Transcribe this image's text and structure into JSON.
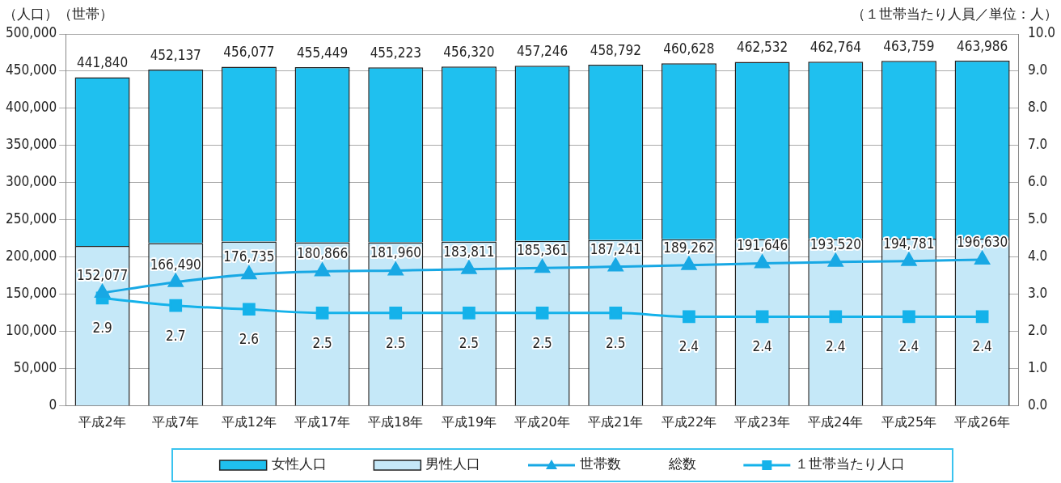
{
  "chart_data": {
    "type": "bar",
    "stacked": true,
    "ylabel": "（人口）（世帯）",
    "y2label": "（１世帯当たり人員／単位：人）",
    "categories": [
      "平成2年",
      "平成7年",
      "平成12年",
      "平成17年",
      "平成18年",
      "平成19年",
      "平成20年",
      "平成21年",
      "平成22年",
      "平成23年",
      "平成24年",
      "平成25年",
      "平成26年"
    ],
    "series": [
      {
        "name": "男性人口",
        "color": "#c5e8f8",
        "values": [
          215000,
          219000,
          221000,
          220000,
          220000,
          221000,
          222000,
          223000,
          224000,
          224000,
          224000,
          225000,
          225000
        ]
      },
      {
        "name": "女性人口",
        "color": "#1fc0ef",
        "values": [
          226840,
          233137,
          235077,
          235449,
          235223,
          235320,
          235246,
          235792,
          236628,
          238532,
          238764,
          238759,
          238986
        ]
      },
      {
        "name": "世帯数",
        "type": "line",
        "color": "#18a8e4",
        "marker": "triangle",
        "values": [
          152077,
          166490,
          176735,
          180866,
          181960,
          183811,
          185361,
          187241,
          189262,
          191646,
          193520,
          194781,
          196630
        ],
        "value_labels": [
          "152,077",
          "166,490",
          "176,735",
          "180,866",
          "181,960",
          "183,811",
          "185,361",
          "187,241",
          "189,262",
          "191,646",
          "193,520",
          "194,781",
          "196,630"
        ]
      },
      {
        "name": "１世帯当たり人口",
        "type": "line",
        "axis": "y2",
        "color": "#14b2ea",
        "marker": "square",
        "values": [
          2.9,
          2.7,
          2.6,
          2.5,
          2.5,
          2.5,
          2.5,
          2.5,
          2.4,
          2.4,
          2.4,
          2.4,
          2.4
        ],
        "value_labels": [
          "2.9",
          "2.7",
          "2.6",
          "2.5",
          "2.5",
          "2.5",
          "2.5",
          "2.5",
          "2.4",
          "2.4",
          "2.4",
          "2.4",
          "2.4"
        ]
      }
    ],
    "totals": [
      "441,840",
      "452,137",
      "456,077",
      "455,449",
      "455,223",
      "456,320",
      "457,246",
      "458,792",
      "460,628",
      "462,532",
      "462,764",
      "463,759",
      "463,986"
    ],
    "annotations": [
      "総数"
    ],
    "ylim": [
      0,
      500000
    ],
    "yticks": [
      {
        "value": 0,
        "label": "0"
      },
      {
        "value": 50000,
        "label": "50,000"
      },
      {
        "value": 100000,
        "label": "100,000"
      },
      {
        "value": 150000,
        "label": "150,000"
      },
      {
        "value": 200000,
        "label": "200,000"
      },
      {
        "value": 250000,
        "label": "250,000"
      },
      {
        "value": 300000,
        "label": "300,000"
      },
      {
        "value": 350000,
        "label": "350,000"
      },
      {
        "value": 400000,
        "label": "400,000"
      },
      {
        "value": 450000,
        "label": "450,000"
      },
      {
        "value": 500000,
        "label": "500,000"
      }
    ],
    "y2lim": [
      0,
      10
    ],
    "y2ticks": [
      {
        "value": 0,
        "label": "0.0"
      },
      {
        "value": 1,
        "label": "1.0"
      },
      {
        "value": 2,
        "label": "2.0"
      },
      {
        "value": 3,
        "label": "3.0"
      },
      {
        "value": 4,
        "label": "4.0"
      },
      {
        "value": 5,
        "label": "5.0"
      },
      {
        "value": 6,
        "label": "6.0"
      },
      {
        "value": 7,
        "label": "7.0"
      },
      {
        "value": 8,
        "label": "8.0"
      },
      {
        "value": 9,
        "label": "9.0"
      },
      {
        "value": 10,
        "label": "10.0"
      }
    ],
    "grid": "y",
    "legend": "bottom"
  }
}
